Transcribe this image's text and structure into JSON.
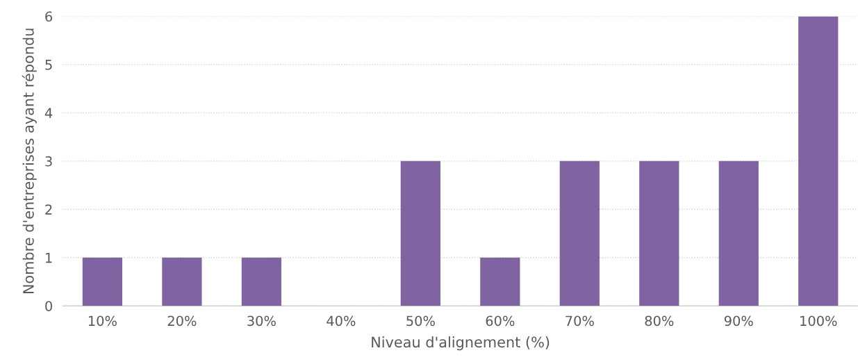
{
  "chart_data": {
    "type": "bar",
    "xlabel": "Niveau d'alignement (%)",
    "ylabel": "Nombre d'entreprises ayant répondu",
    "categories": [
      "10%",
      "20%",
      "30%",
      "40%",
      "50%",
      "60%",
      "70%",
      "80%",
      "90%",
      "100%"
    ],
    "values": [
      1,
      1,
      1,
      0,
      3,
      1,
      3,
      3,
      3,
      6
    ],
    "color": "#8064a2",
    "ylim": [
      0,
      6
    ],
    "yticks": [
      0,
      1,
      2,
      3,
      4,
      5,
      6
    ],
    "grid": "y"
  }
}
